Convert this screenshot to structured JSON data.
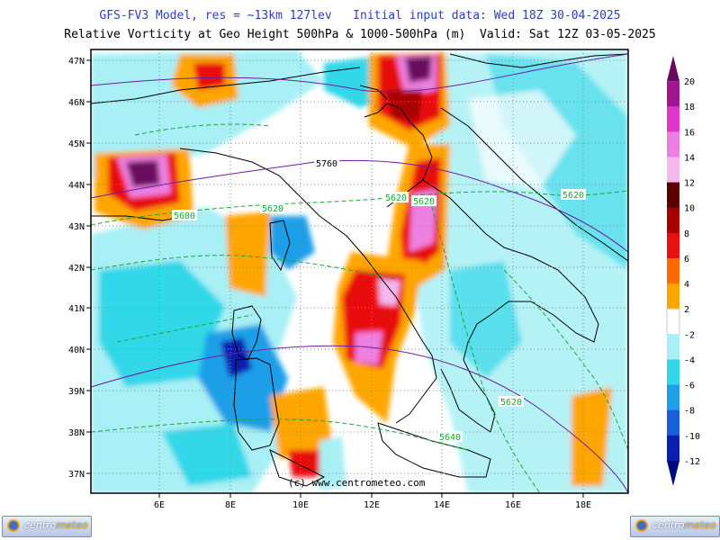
{
  "header": {
    "line1": "GFS-FV3 Model, res = ~13km 127lev   Initial input data: Wed 18Z 30-04-2025",
    "line2": "Relative Vorticity at Geo Height 500hPa & 1000-500hPa (m)  Valid: Sat 12Z 03-05-2025"
  },
  "axes": {
    "lat_labels": [
      "47N",
      "46N",
      "45N",
      "44N",
      "43N",
      "42N",
      "41N",
      "40N",
      "39N",
      "38N",
      "37N"
    ],
    "lon_labels": [
      "6E",
      "8E",
      "10E",
      "12E",
      "14E",
      "16E",
      "18E"
    ]
  },
  "colorbar": {
    "levels": [
      "20",
      "18",
      "16",
      "14",
      "12",
      "10",
      "8",
      "6",
      "4",
      "2",
      "-2",
      "-4",
      "-6",
      "-8",
      "-10",
      "-12"
    ],
    "colors": [
      "#6a0a5e",
      "#a0168f",
      "#e035c8",
      "#ee80e2",
      "#f4b8ef",
      "#5a0000",
      "#a80000",
      "#e81010",
      "#ff6a00",
      "#ffa500",
      "#ffffff",
      "#a8f0f5",
      "#33d7e8",
      "#1e9fe8",
      "#1a5fd8",
      "#0a1fae",
      "#000a80"
    ]
  },
  "contours": {
    "height_labels": [
      "5760",
      "5620",
      "5620",
      "5600",
      "5620",
      "5620",
      "5620",
      "5640"
    ]
  },
  "watermark": "(c) www.centrometeo.com",
  "logos": {
    "left_a": "centro",
    "left_b": "meteo"
  },
  "colors": {
    "title1": "#2b3fbf",
    "title2": "#000000",
    "height_contour": "#6b1fa0",
    "thickness_contour": "#1aa83a"
  }
}
